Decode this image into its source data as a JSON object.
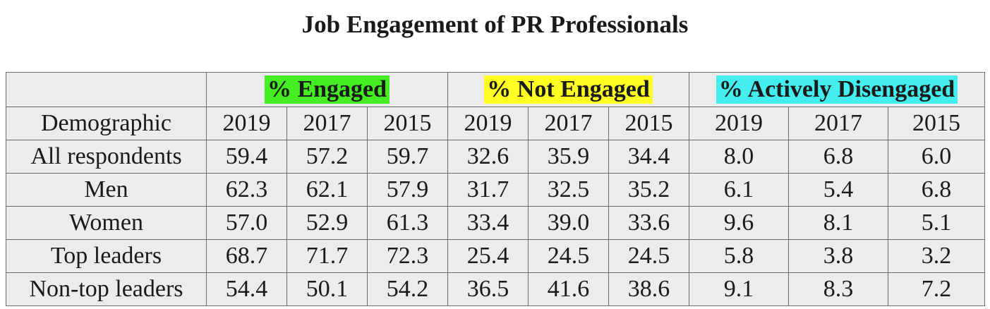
{
  "chart_data": {
    "type": "table",
    "title": "Job Engagement of PR Professionals",
    "row_header": "Demographic",
    "groups": [
      {
        "label": "% Engaged",
        "color": "#44ee22"
      },
      {
        "label": "% Not Engaged",
        "color": "#ffff22"
      },
      {
        "label": "% Actively Disengaged",
        "color": "#44eeee"
      }
    ],
    "years": [
      "2019",
      "2017",
      "2015"
    ],
    "rows": [
      {
        "label": "All respondents",
        "values": [
          "59.4",
          "57.2",
          "59.7",
          "32.6",
          "35.9",
          "34.4",
          "8.0",
          "6.8",
          "6.0"
        ]
      },
      {
        "label": "Men",
        "values": [
          "62.3",
          "62.1",
          "57.9",
          "31.7",
          "32.5",
          "35.2",
          "6.1",
          "5.4",
          "6.8"
        ]
      },
      {
        "label": "Women",
        "values": [
          "57.0",
          "52.9",
          "61.3",
          "33.4",
          "39.0",
          "33.6",
          "9.6",
          "8.1",
          "5.1"
        ]
      },
      {
        "label": "Top leaders",
        "values": [
          "68.7",
          "71.7",
          "72.3",
          "25.4",
          "24.5",
          "24.5",
          "5.8",
          "3.8",
          "3.2"
        ]
      },
      {
        "label": "Non-top leaders",
        "values": [
          "54.4",
          "50.1",
          "54.2",
          "36.5",
          "41.6",
          "38.6",
          "9.1",
          "8.3",
          "7.2"
        ]
      }
    ]
  }
}
